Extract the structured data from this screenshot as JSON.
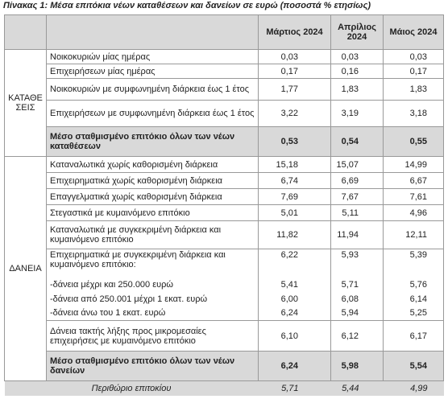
{
  "header": {
    "title": "Πίνακας 1: Μέσα επιτόκια νέων καταθέσεων και δανείων σε ευρώ (ποσοστά % ετησίως)"
  },
  "table": {
    "columns": [
      "Μάρτιος 2024",
      "Απρίλιος 2024",
      "Μάιος 2024"
    ],
    "groups": [
      {
        "label": "ΚΑΤΑΘΕΣΕΙΣ",
        "rows": [
          {
            "label": "Νοικοκυριών μίας ημέρας",
            "values": [
              "0,03",
              "0,03",
              "0,03"
            ]
          },
          {
            "label": "Επιχειρήσεων μίας ημέρας",
            "values": [
              "0,17",
              "0,16",
              "0,17"
            ]
          },
          {
            "label": "Νοικοκυριών με συμφωνημένη διάρκεια έως 1 έτος",
            "values": [
              "1,77",
              "1,83",
              "1,83"
            ]
          },
          {
            "label": "Επιχειρήσεων με συμφωνημένη διάρκεια έως 1 έτος",
            "values": [
              "3,22",
              "3,19",
              "3,18"
            ]
          }
        ],
        "total": {
          "label": "Μέσο σταθμισμένο επιτόκιο όλων των νέων καταθέσεων",
          "values": [
            "0,53",
            "0,54",
            "0,55"
          ]
        }
      },
      {
        "label": "ΔΑΝΕΙΑ",
        "rows": [
          {
            "label": "Καταναλωτικά χωρίς καθορισμένη διάρκεια",
            "values": [
              "15,18",
              "15,07",
              "14,99"
            ]
          },
          {
            "label": "Επιχειρηματικά χωρίς καθορισμένη διάρκεια",
            "values": [
              "6,74",
              "6,69",
              "6,67"
            ]
          },
          {
            "label": "Επαγγελματικά χωρίς καθορισμένη διάρκεια",
            "values": [
              "7,69",
              "7,67",
              "7,61"
            ]
          },
          {
            "label": "Στεγαστικά με κυμαινόμενο επιτόκιο",
            "values": [
              "5,01",
              "5,11",
              "4,96"
            ]
          },
          {
            "label": "Καταναλωτικά με συγκεκριμένη διάρκεια και κυμαινόμενο επιτόκιο",
            "values": [
              "11,82",
              "11,94",
              "12,11"
            ]
          },
          {
            "label": "Επιχειρηματικά με συγκεκριμένη διάρκεια και κυμαινόμενο επιτόκιο:",
            "values": [
              "6,22",
              "5,93",
              "5,39"
            ],
            "items": [
              {
                "label": "-δάνεια μέχρι και 250.000 ευρώ",
                "values": [
                  "5,41",
                  "5,71",
                  "5,76"
                ]
              },
              {
                "label": "-δάνεια από 250.001 μέχρι 1 εκατ. ευρώ",
                "values": [
                  "6,00",
                  "6,08",
                  "6,14"
                ]
              },
              {
                "label": "-δάνεια άνω του 1 εκατ. ευρώ",
                "values": [
                  "6,24",
                  "5,94",
                  "5,25"
                ]
              }
            ]
          },
          {
            "label": "Δάνεια τακτής λήξης προς μικρομεσαίες επιχειρήσεις με κυμαινόμενο επιτόκιο",
            "values": [
              "6,10",
              "6,12",
              "6,17"
            ]
          }
        ],
        "total": {
          "label": "Μέσο σταθμισμένο επιτόκιο όλων των νέων δανείων",
          "values": [
            "6,24",
            "5,98",
            "5,54"
          ]
        }
      }
    ],
    "footer": {
      "label": "Περιθώριο επιτοκίου",
      "values": [
        "5,71",
        "5,44",
        "4,99"
      ]
    }
  }
}
